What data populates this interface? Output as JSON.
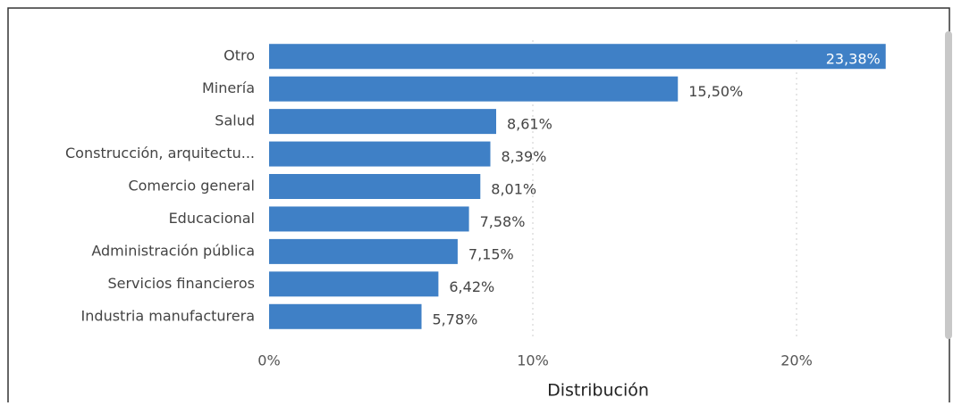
{
  "chart_data": {
    "type": "bar",
    "orientation": "horizontal",
    "x_label": "Distribución",
    "categories": [
      "Otro",
      "Minería",
      "Salud",
      "Construcción, arquitectu...",
      "Comercio general",
      "Educacional",
      "Administración pública",
      "Servicios financieros",
      "Industria manufacturera"
    ],
    "values": [
      23.38,
      15.5,
      8.61,
      8.39,
      8.01,
      7.58,
      7.15,
      6.42,
      5.78
    ],
    "value_labels": [
      "23,38%",
      "15,50%",
      "8,61%",
      "8,39%",
      "8,01%",
      "7,58%",
      "7,15%",
      "6,42%",
      "5,78%"
    ],
    "color": "#3f80c6",
    "xlim": [
      0,
      24
    ],
    "xticks": [
      {
        "value": 0,
        "label": "0%"
      },
      {
        "value": 10,
        "label": "10%"
      },
      {
        "value": 20,
        "label": "20%"
      }
    ],
    "grid": true
  }
}
